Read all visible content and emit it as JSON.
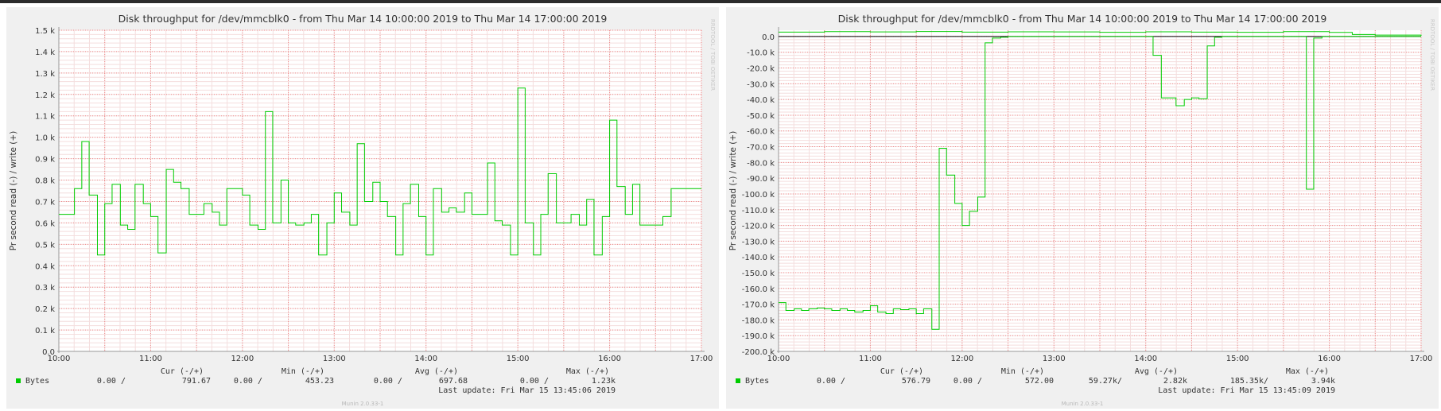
{
  "chart_data": [
    {
      "type": "line",
      "title": "Disk throughput for /dev/mmcblk0 - from Thu Mar 14 10:00:00 2019 to Thu Mar 14 17:00:00 2019",
      "ylabel": "Pr second read (-) / write (+)",
      "watermark": "RRDTOOL / TOBI OETIKER",
      "footer": "Munin 2.0.33-1",
      "xlim": [
        10,
        17
      ],
      "ylim": [
        0,
        1500
      ],
      "y_ticks": [
        {
          "v": 0,
          "label": "0.0"
        },
        {
          "v": 100,
          "label": "0.1 k"
        },
        {
          "v": 200,
          "label": "0.2 k"
        },
        {
          "v": 300,
          "label": "0.3 k"
        },
        {
          "v": 400,
          "label": "0.4 k"
        },
        {
          "v": 500,
          "label": "0.5 k"
        },
        {
          "v": 600,
          "label": "0.6 k"
        },
        {
          "v": 700,
          "label": "0.7 k"
        },
        {
          "v": 800,
          "label": "0.8 k"
        },
        {
          "v": 900,
          "label": "0.9 k"
        },
        {
          "v": 1000,
          "label": "1.0 k"
        },
        {
          "v": 1100,
          "label": "1.1 k"
        },
        {
          "v": 1200,
          "label": "1.2 k"
        },
        {
          "v": 1300,
          "label": "1.3 k"
        },
        {
          "v": 1400,
          "label": "1.4 k"
        },
        {
          "v": 1500,
          "label": "1.5 k"
        }
      ],
      "x_ticks": [
        {
          "v": 10,
          "label": "10:00"
        },
        {
          "v": 11,
          "label": "11:00"
        },
        {
          "v": 12,
          "label": "12:00"
        },
        {
          "v": 13,
          "label": "13:00"
        },
        {
          "v": 14,
          "label": "14:00"
        },
        {
          "v": 15,
          "label": "15:00"
        },
        {
          "v": 16,
          "label": "16:00"
        },
        {
          "v": 17,
          "label": "17:00"
        }
      ],
      "series": [
        {
          "name": "Bytes",
          "color": "#00cc00",
          "step": true,
          "x": [
            10.0,
            10.17,
            10.25,
            10.33,
            10.42,
            10.5,
            10.58,
            10.67,
            10.75,
            10.83,
            10.92,
            11.0,
            11.08,
            11.17,
            11.25,
            11.33,
            11.42,
            11.5,
            11.58,
            11.67,
            11.75,
            11.83,
            11.92,
            12.0,
            12.08,
            12.17,
            12.25,
            12.33,
            12.42,
            12.5,
            12.58,
            12.67,
            12.75,
            12.83,
            12.92,
            13.0,
            13.08,
            13.17,
            13.25,
            13.33,
            13.42,
            13.5,
            13.58,
            13.67,
            13.75,
            13.83,
            13.92,
            14.0,
            14.08,
            14.17,
            14.25,
            14.33,
            14.42,
            14.5,
            14.58,
            14.67,
            14.75,
            14.83,
            14.92,
            15.0,
            15.08,
            15.17,
            15.25,
            15.33,
            15.42,
            15.5,
            15.58,
            15.67,
            15.75,
            15.83,
            15.92,
            16.0,
            16.08,
            16.17,
            16.25,
            16.33,
            16.42,
            16.5,
            16.58,
            16.67,
            16.75,
            16.83,
            16.92,
            17.0
          ],
          "y": [
            640,
            760,
            980,
            730,
            450,
            690,
            780,
            590,
            570,
            780,
            690,
            630,
            460,
            850,
            790,
            760,
            640,
            640,
            690,
            650,
            590,
            760,
            760,
            730,
            590,
            570,
            1120,
            600,
            800,
            600,
            590,
            600,
            640,
            450,
            600,
            740,
            650,
            590,
            970,
            700,
            790,
            700,
            630,
            450,
            690,
            780,
            630,
            450,
            760,
            650,
            670,
            650,
            740,
            640,
            640,
            880,
            610,
            590,
            450,
            1230,
            600,
            450,
            640,
            830,
            600,
            600,
            640,
            590,
            710,
            450,
            630,
            1080,
            770,
            640,
            780,
            590,
            590,
            590,
            630,
            760,
            760,
            760,
            760,
            760
          ]
        }
      ],
      "legend": {
        "headers": [
          "Cur (-/+)",
          "Min (-/+)",
          "Avg (-/+)",
          "Max (-/+)"
        ],
        "series_name": "Bytes",
        "cur": [
          "0.00 /",
          "791.67"
        ],
        "min": [
          "0.00 /",
          "453.23"
        ],
        "avg": [
          "0.00 /",
          "697.68"
        ],
        "max": [
          "0.00 /",
          "1.23k"
        ],
        "last_update": "Last update: Fri Mar 15 13:45:06 2019"
      }
    },
    {
      "type": "line",
      "title": "Disk throughput for /dev/mmcblk0 - from Thu Mar 14 10:00:00 2019 to Thu Mar 14 17:00:00 2019",
      "ylabel": "Pr second read (-) / write (+)",
      "watermark": "RRDTOOL / TOBI OETIKER",
      "footer": "Munin 2.0.33-1",
      "xlim": [
        10,
        17
      ],
      "ylim": [
        -200000,
        4000
      ],
      "y_ticks": [
        {
          "v": 0,
          "label": "0.0"
        },
        {
          "v": -10000,
          "label": "-10.0 k"
        },
        {
          "v": -20000,
          "label": "-20.0 k"
        },
        {
          "v": -30000,
          "label": "-30.0 k"
        },
        {
          "v": -40000,
          "label": "-40.0 k"
        },
        {
          "v": -50000,
          "label": "-50.0 k"
        },
        {
          "v": -60000,
          "label": "-60.0 k"
        },
        {
          "v": -70000,
          "label": "-70.0 k"
        },
        {
          "v": -80000,
          "label": "-80.0 k"
        },
        {
          "v": -90000,
          "label": "-90.0 k"
        },
        {
          "v": -100000,
          "label": "-100.0 k"
        },
        {
          "v": -110000,
          "label": "-110.0 k"
        },
        {
          "v": -120000,
          "label": "-120.0 k"
        },
        {
          "v": -130000,
          "label": "-130.0 k"
        },
        {
          "v": -140000,
          "label": "-140.0 k"
        },
        {
          "v": -150000,
          "label": "-150.0 k"
        },
        {
          "v": -160000,
          "label": "-160.0 k"
        },
        {
          "v": -170000,
          "label": "-170.0 k"
        },
        {
          "v": -180000,
          "label": "-180.0 k"
        },
        {
          "v": -190000,
          "label": "-190.0 k"
        },
        {
          "v": -200000,
          "label": "-200.0 k"
        }
      ],
      "x_ticks": [
        {
          "v": 10,
          "label": "10:00"
        },
        {
          "v": 11,
          "label": "11:00"
        },
        {
          "v": 12,
          "label": "12:00"
        },
        {
          "v": 13,
          "label": "13:00"
        },
        {
          "v": 14,
          "label": "14:00"
        },
        {
          "v": 15,
          "label": "15:00"
        },
        {
          "v": 16,
          "label": "16:00"
        },
        {
          "v": 17,
          "label": "17:00"
        }
      ],
      "series": [
        {
          "name": "Bytes",
          "role": "read",
          "color": "#00cc00",
          "step": true,
          "x": [
            10.0,
            10.08,
            10.17,
            10.25,
            10.33,
            10.42,
            10.5,
            10.58,
            10.67,
            10.75,
            10.83,
            10.92,
            11.0,
            11.08,
            11.17,
            11.25,
            11.33,
            11.42,
            11.5,
            11.58,
            11.67,
            11.75,
            11.83,
            11.92,
            12.0,
            12.08,
            12.17,
            12.25,
            12.33,
            12.42,
            12.5,
            12.58,
            14.0,
            14.08,
            14.17,
            14.25,
            14.33,
            14.42,
            14.5,
            14.58,
            14.67,
            14.75,
            14.83,
            14.92,
            15.67,
            15.75,
            15.83,
            15.92,
            16.0,
            17.0
          ],
          "y": [
            -169000,
            -174000,
            -173000,
            -174000,
            -173000,
            -172500,
            -173000,
            -174000,
            -173000,
            -174000,
            -175000,
            -174000,
            -171000,
            -175000,
            -176000,
            -173000,
            -173500,
            -173000,
            -176000,
            -173000,
            -186000,
            -71000,
            -88000,
            -106000,
            -120000,
            -111000,
            -102000,
            -4000,
            -1000,
            -500,
            0,
            0,
            0,
            -12000,
            -39000,
            -39000,
            -44000,
            -40000,
            -39000,
            -39500,
            -6000,
            -500,
            0,
            0,
            0,
            -97000,
            -1000,
            0,
            0,
            0
          ]
        },
        {
          "name": "Bytes",
          "role": "write",
          "color": "#00cc00",
          "step": true,
          "x": [
            10.0,
            10.5,
            11.0,
            11.5,
            12.0,
            12.5,
            13.0,
            13.5,
            14.0,
            14.5,
            15.0,
            15.5,
            16.0,
            16.25,
            16.5,
            17.0
          ],
          "y": [
            2800,
            3100,
            2900,
            3200,
            2800,
            3000,
            2900,
            2700,
            3000,
            2800,
            2700,
            3100,
            2600,
            1300,
            900,
            400
          ]
        }
      ],
      "legend": {
        "headers": [
          "Cur (-/+)",
          "Min (-/+)",
          "Avg (-/+)",
          "Max (-/+)"
        ],
        "series_name": "Bytes",
        "cur": [
          "0.00 /",
          "576.79"
        ],
        "min": [
          "0.00 /",
          "572.00"
        ],
        "avg": [
          "59.27k/",
          "2.82k"
        ],
        "max": [
          "185.35k/",
          "3.94k"
        ],
        "last_update": "Last update: Fri Mar 15 13:45:09 2019"
      }
    }
  ]
}
